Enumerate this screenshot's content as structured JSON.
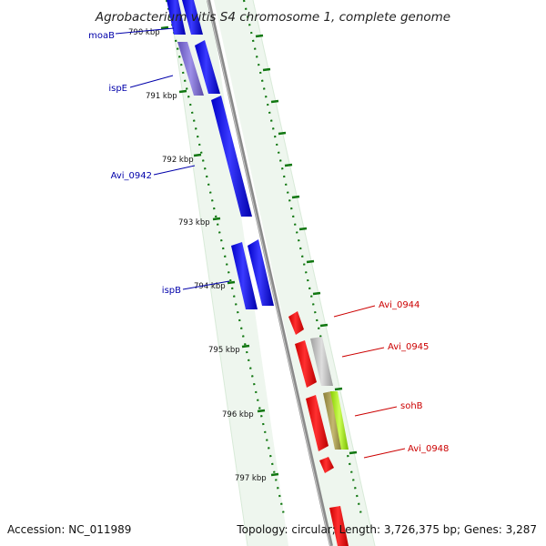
{
  "title": "Agrobacterium vitis S4 chromosome 1, complete genome",
  "footer": {
    "accession": "Accession: NC_011989",
    "topology": "Topology: circular; Length: 3,726,375 bp; Genes: 3,287"
  },
  "colors": {
    "forward_gene": "#0000ee",
    "forward_gene_alt": "#7b68d0",
    "reverse_gene": "#ee0000",
    "gray_gene": "#b8b8b8",
    "lime_gene": "#aaee22",
    "olive_gene": "#a89c50",
    "backbone": "#888888",
    "tick": "#117711",
    "label_forward": "#0000aa",
    "label_reverse": "#cc0000"
  },
  "ticks": [
    "790 kbp",
    "791 kbp",
    "792 kbp",
    "793 kbp",
    "794 kbp",
    "795 kbp",
    "796 kbp",
    "797 kbp"
  ],
  "forward_labels": [
    "moaB",
    "ispE",
    "Avi_0942",
    "ispB"
  ],
  "reverse_labels": [
    "Avi_0944",
    "Avi_0945",
    "sohB",
    "Avi_0948"
  ]
}
